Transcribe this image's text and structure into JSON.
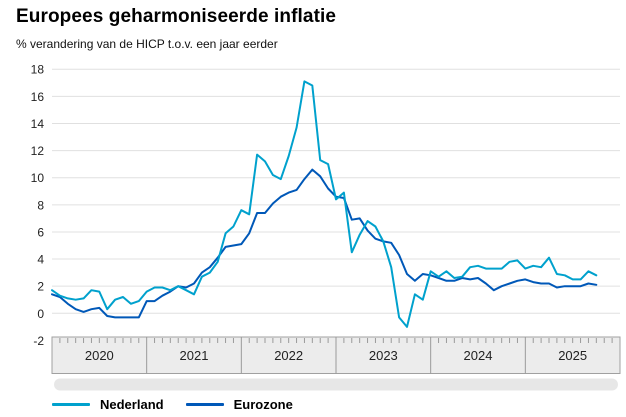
{
  "header": {
    "title": "Europees geharmoniseerde inflatie",
    "subtitle": "% verandering van de HICP t.o.v. een jaar eerder"
  },
  "chart_data": {
    "type": "line",
    "title": "Europees geharmoniseerde inflatie",
    "subtitle": "% verandering van de HICP t.o.v. een jaar eerder",
    "x_unit": "month",
    "x_start": "2020-01",
    "x_end": "2025-10",
    "year_labels": [
      "2020",
      "2021",
      "2022",
      "2023",
      "2024",
      "2025"
    ],
    "y_ticks": [
      18,
      16,
      14,
      12,
      10,
      8,
      6,
      4,
      2,
      0,
      -2
    ],
    "ylim": [
      -2,
      18
    ],
    "grid": "horizontal",
    "legend_position": "bottom",
    "series": [
      {
        "name": "Nederland",
        "color": "#00a1cd",
        "values": [
          1.7,
          1.3,
          1.1,
          1.0,
          1.1,
          1.7,
          1.6,
          0.3,
          1.0,
          1.2,
          0.7,
          0.9,
          1.6,
          1.9,
          1.9,
          1.7,
          2.0,
          1.7,
          1.4,
          2.7,
          3.0,
          3.8,
          5.9,
          6.4,
          7.6,
          7.3,
          11.7,
          11.2,
          10.2,
          9.9,
          11.6,
          13.7,
          17.1,
          16.8,
          11.3,
          11.0,
          8.4,
          8.9,
          4.5,
          5.8,
          6.8,
          6.4,
          5.3,
          3.4,
          -0.3,
          -1.0,
          1.4,
          1.0,
          3.1,
          2.7,
          3.1,
          2.6,
          2.7,
          3.4,
          3.5,
          3.3,
          3.3,
          3.3,
          3.8,
          3.9,
          3.3,
          3.5,
          3.4,
          4.1,
          2.9,
          2.8,
          2.5,
          2.5,
          3.1,
          2.8
        ]
      },
      {
        "name": "Eurozone",
        "color": "#0058b8",
        "values": [
          1.4,
          1.2,
          0.7,
          0.3,
          0.1,
          0.3,
          0.4,
          -0.2,
          -0.3,
          -0.3,
          -0.3,
          -0.3,
          0.9,
          0.9,
          1.3,
          1.6,
          2.0,
          1.9,
          2.2,
          3.0,
          3.4,
          4.1,
          4.9,
          5.0,
          5.1,
          5.9,
          7.4,
          7.4,
          8.1,
          8.6,
          8.9,
          9.1,
          9.9,
          10.6,
          10.1,
          9.2,
          8.6,
          8.5,
          6.9,
          7.0,
          6.1,
          5.5,
          5.3,
          5.2,
          4.3,
          2.9,
          2.4,
          2.9,
          2.8,
          2.6,
          2.4,
          2.4,
          2.6,
          2.5,
          2.6,
          2.2,
          1.7,
          2.0,
          2.2,
          2.4,
          2.5,
          2.3,
          2.2,
          2.2,
          1.9,
          2.0,
          2.0,
          2.0,
          2.2,
          2.1
        ]
      }
    ]
  },
  "colors": {
    "grid": "#e0e0e0",
    "axis_band_bg": "#ececec",
    "axis_band_border": "#a0a0a0",
    "axis_tick": "#9a9a9a",
    "slider_bg": "#e7e7e7",
    "text": "#222222"
  }
}
